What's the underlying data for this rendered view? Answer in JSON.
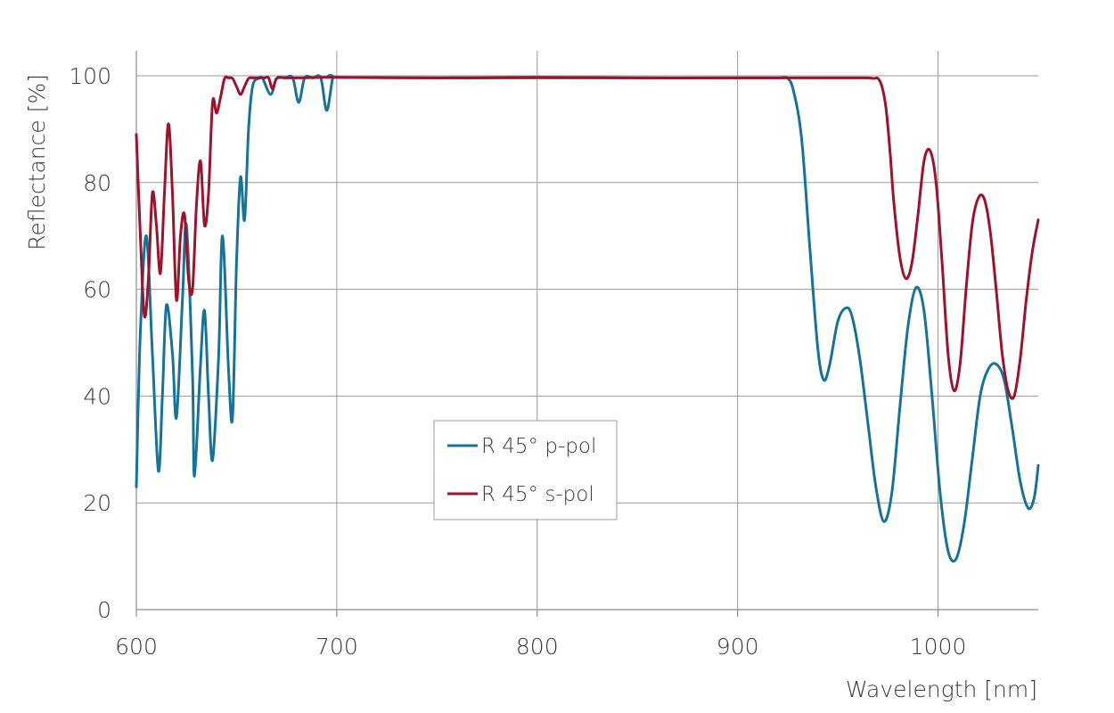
{
  "chart_data": {
    "type": "line",
    "xlabel": "Wavelength [nm]",
    "ylabel": "Reflectance [%]",
    "xlim": [
      600,
      1050
    ],
    "ylim": [
      0,
      100
    ],
    "x_ticks": [
      600,
      700,
      800,
      900,
      1000
    ],
    "y_ticks": [
      0,
      20,
      40,
      60,
      80,
      100
    ],
    "grid": true,
    "legend_position": "center-bottom",
    "series": [
      {
        "name": "R 45° p-pol",
        "color": "#15739a",
        "x": [
          600,
          602,
          605,
          608,
          611,
          613,
          615,
          618,
          620,
          623,
          625,
          628,
          629,
          632,
          634,
          636,
          638,
          641,
          643,
          646,
          648,
          650,
          652,
          654,
          656,
          658,
          661,
          663,
          667,
          670,
          674,
          678,
          681,
          684,
          688,
          692,
          695,
          698,
          700,
          750,
          800,
          850,
          900,
          920,
          925,
          928,
          932,
          936,
          940,
          943,
          946,
          950,
          954,
          957,
          961,
          965,
          969,
          973,
          977,
          981,
          985,
          989,
          993,
          997,
          1001,
          1005,
          1009,
          1013,
          1017,
          1021,
          1025,
          1029,
          1033,
          1037,
          1041,
          1045,
          1048,
          1050
        ],
        "values": [
          23,
          52,
          70,
          48,
          26,
          40,
          57,
          48,
          36,
          58,
          72,
          44,
          25,
          46,
          56,
          40,
          28,
          47,
          70,
          45,
          36,
          65,
          81,
          73,
          90,
          98,
          99.5,
          99.5,
          96.5,
          99.5,
          99.6,
          99.6,
          95,
          99.6,
          99.6,
          99.6,
          93.5,
          99.6,
          99.7,
          99.6,
          99.6,
          99.6,
          99.6,
          99.6,
          99.5,
          97,
          88,
          68,
          49,
          43,
          46,
          54,
          56.5,
          55,
          47,
          35,
          23,
          16.5,
          22,
          38,
          53,
          60.3,
          56,
          40,
          22,
          11,
          9.5,
          16,
          28,
          40,
          45,
          46,
          43,
          34,
          24,
          19,
          21,
          27
        ]
      },
      {
        "name": "R 45° s-pol",
        "color": "#a0112a",
        "x": [
          600,
          602,
          604,
          606,
          608,
          610,
          612,
          614,
          616,
          618,
          620,
          622,
          624,
          626,
          628,
          630,
          632,
          634,
          636,
          638,
          640,
          642,
          644,
          646,
          648,
          650,
          652,
          654,
          656,
          658,
          660,
          662,
          664,
          666,
          668,
          670,
          675,
          680,
          700,
          750,
          800,
          850,
          900,
          930,
          960,
          965,
          968,
          970,
          972,
          974,
          976,
          978,
          981,
          984,
          987,
          990,
          993,
          996,
          999,
          1002,
          1005,
          1008,
          1011,
          1014,
          1017,
          1020,
          1023,
          1026,
          1029,
          1032,
          1035,
          1038,
          1041,
          1044,
          1047,
          1050
        ],
        "values": [
          89,
          70,
          55,
          62,
          78,
          72,
          63,
          78,
          91,
          78,
          58,
          70,
          74,
          62,
          60,
          76,
          84,
          72,
          78,
          95,
          93,
          96,
          99.5,
          99.6,
          99.5,
          98,
          96.5,
          98,
          99.5,
          99.6,
          99.6,
          99.6,
          99.6,
          99.6,
          97.5,
          99.5,
          99.6,
          99.6,
          99.7,
          99.6,
          99.7,
          99.6,
          99.6,
          99.6,
          99.6,
          99.6,
          99.5,
          99.5,
          98,
          94,
          86,
          76,
          66,
          62,
          65,
          74,
          84,
          86,
          80,
          65,
          48,
          41,
          46,
          60,
          72,
          77,
          77,
          71,
          60,
          48,
          41,
          40,
          47,
          58,
          67,
          73
        ]
      }
    ]
  }
}
